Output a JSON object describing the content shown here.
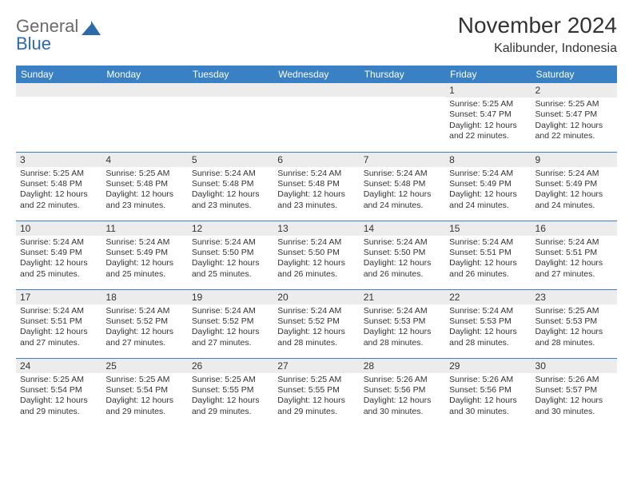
{
  "logo": {
    "line1": "General",
    "line2": "Blue",
    "line2_color": "#2f6aa8"
  },
  "title": "November 2024",
  "location": "Kalibunder, Indonesia",
  "header_bg": "#3a80c4",
  "day_headers": [
    "Sunday",
    "Monday",
    "Tuesday",
    "Wednesday",
    "Thursday",
    "Friday",
    "Saturday"
  ],
  "colors": {
    "header_bg": "#3a80c4",
    "header_text": "#ffffff",
    "cell_border": "#3a80c4",
    "daynum_bg": "#ececec",
    "text": "#333333",
    "background": "#ffffff"
  },
  "fonts": {
    "title_size_pt": 21,
    "location_size_pt": 12,
    "header_size_pt": 9,
    "daynum_size_pt": 9,
    "body_size_pt": 8
  },
  "weeks": [
    [
      {
        "n": "",
        "sr": "",
        "ss": "",
        "dl": ""
      },
      {
        "n": "",
        "sr": "",
        "ss": "",
        "dl": ""
      },
      {
        "n": "",
        "sr": "",
        "ss": "",
        "dl": ""
      },
      {
        "n": "",
        "sr": "",
        "ss": "",
        "dl": ""
      },
      {
        "n": "",
        "sr": "",
        "ss": "",
        "dl": ""
      },
      {
        "n": "1",
        "sr": "5:25 AM",
        "ss": "5:47 PM",
        "dl": "12 hours and 22 minutes."
      },
      {
        "n": "2",
        "sr": "5:25 AM",
        "ss": "5:47 PM",
        "dl": "12 hours and 22 minutes."
      }
    ],
    [
      {
        "n": "3",
        "sr": "5:25 AM",
        "ss": "5:48 PM",
        "dl": "12 hours and 22 minutes."
      },
      {
        "n": "4",
        "sr": "5:25 AM",
        "ss": "5:48 PM",
        "dl": "12 hours and 23 minutes."
      },
      {
        "n": "5",
        "sr": "5:24 AM",
        "ss": "5:48 PM",
        "dl": "12 hours and 23 minutes."
      },
      {
        "n": "6",
        "sr": "5:24 AM",
        "ss": "5:48 PM",
        "dl": "12 hours and 23 minutes."
      },
      {
        "n": "7",
        "sr": "5:24 AM",
        "ss": "5:48 PM",
        "dl": "12 hours and 24 minutes."
      },
      {
        "n": "8",
        "sr": "5:24 AM",
        "ss": "5:49 PM",
        "dl": "12 hours and 24 minutes."
      },
      {
        "n": "9",
        "sr": "5:24 AM",
        "ss": "5:49 PM",
        "dl": "12 hours and 24 minutes."
      }
    ],
    [
      {
        "n": "10",
        "sr": "5:24 AM",
        "ss": "5:49 PM",
        "dl": "12 hours and 25 minutes."
      },
      {
        "n": "11",
        "sr": "5:24 AM",
        "ss": "5:49 PM",
        "dl": "12 hours and 25 minutes."
      },
      {
        "n": "12",
        "sr": "5:24 AM",
        "ss": "5:50 PM",
        "dl": "12 hours and 25 minutes."
      },
      {
        "n": "13",
        "sr": "5:24 AM",
        "ss": "5:50 PM",
        "dl": "12 hours and 26 minutes."
      },
      {
        "n": "14",
        "sr": "5:24 AM",
        "ss": "5:50 PM",
        "dl": "12 hours and 26 minutes."
      },
      {
        "n": "15",
        "sr": "5:24 AM",
        "ss": "5:51 PM",
        "dl": "12 hours and 26 minutes."
      },
      {
        "n": "16",
        "sr": "5:24 AM",
        "ss": "5:51 PM",
        "dl": "12 hours and 27 minutes."
      }
    ],
    [
      {
        "n": "17",
        "sr": "5:24 AM",
        "ss": "5:51 PM",
        "dl": "12 hours and 27 minutes."
      },
      {
        "n": "18",
        "sr": "5:24 AM",
        "ss": "5:52 PM",
        "dl": "12 hours and 27 minutes."
      },
      {
        "n": "19",
        "sr": "5:24 AM",
        "ss": "5:52 PM",
        "dl": "12 hours and 27 minutes."
      },
      {
        "n": "20",
        "sr": "5:24 AM",
        "ss": "5:52 PM",
        "dl": "12 hours and 28 minutes."
      },
      {
        "n": "21",
        "sr": "5:24 AM",
        "ss": "5:53 PM",
        "dl": "12 hours and 28 minutes."
      },
      {
        "n": "22",
        "sr": "5:24 AM",
        "ss": "5:53 PM",
        "dl": "12 hours and 28 minutes."
      },
      {
        "n": "23",
        "sr": "5:25 AM",
        "ss": "5:53 PM",
        "dl": "12 hours and 28 minutes."
      }
    ],
    [
      {
        "n": "24",
        "sr": "5:25 AM",
        "ss": "5:54 PM",
        "dl": "12 hours and 29 minutes."
      },
      {
        "n": "25",
        "sr": "5:25 AM",
        "ss": "5:54 PM",
        "dl": "12 hours and 29 minutes."
      },
      {
        "n": "26",
        "sr": "5:25 AM",
        "ss": "5:55 PM",
        "dl": "12 hours and 29 minutes."
      },
      {
        "n": "27",
        "sr": "5:25 AM",
        "ss": "5:55 PM",
        "dl": "12 hours and 29 minutes."
      },
      {
        "n": "28",
        "sr": "5:26 AM",
        "ss": "5:56 PM",
        "dl": "12 hours and 30 minutes."
      },
      {
        "n": "29",
        "sr": "5:26 AM",
        "ss": "5:56 PM",
        "dl": "12 hours and 30 minutes."
      },
      {
        "n": "30",
        "sr": "5:26 AM",
        "ss": "5:57 PM",
        "dl": "12 hours and 30 minutes."
      }
    ]
  ],
  "labels": {
    "sunrise": "Sunrise:",
    "sunset": "Sunset:",
    "daylight": "Daylight:"
  }
}
